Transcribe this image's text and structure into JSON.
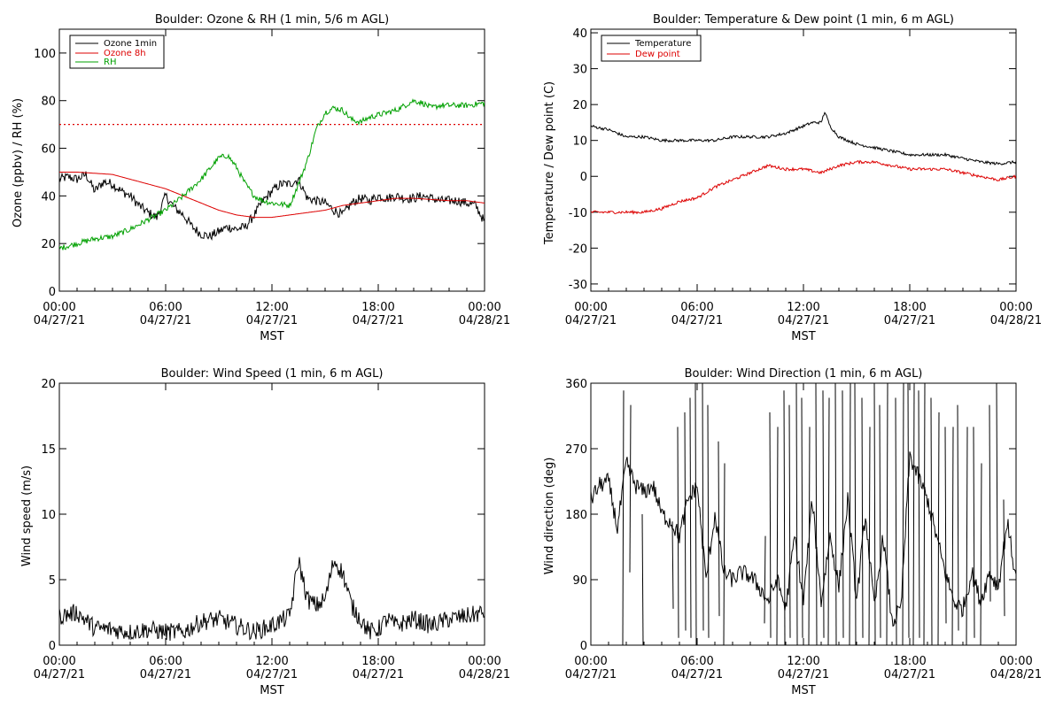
{
  "colors": {
    "black": "#000000",
    "red": "#dd0000",
    "green": "#00a000"
  },
  "x_axis": {
    "label": "MST",
    "range_hours": [
      0,
      24
    ],
    "ticks": [
      {
        "hour": 0,
        "time": "00:00",
        "date": "04/27/21"
      },
      {
        "hour": 6,
        "time": "06:00",
        "date": "04/27/21"
      },
      {
        "hour": 12,
        "time": "12:00",
        "date": "04/27/21"
      },
      {
        "hour": 18,
        "time": "18:00",
        "date": "04/27/21"
      },
      {
        "hour": 24,
        "time": "00:00",
        "date": "04/28/21"
      }
    ]
  },
  "chart_data": [
    {
      "id": "ozone",
      "type": "line",
      "title": "Boulder: Ozone & RH (1 min, 5/6 m AGL)",
      "xlabel": "MST",
      "ylabel": "Ozone (ppbv) / RH (%)",
      "ylim": [
        0,
        110
      ],
      "yticks": [
        0,
        20,
        40,
        60,
        80,
        100
      ],
      "legend_position": "top-left",
      "reference_line": {
        "y": 70,
        "color": "#dd0000",
        "style": "dotted"
      },
      "series": [
        {
          "name": "Ozone 1min",
          "color": "#000000",
          "noise": 2.0,
          "x": [
            0,
            0.5,
            1,
            1.5,
            2,
            2.5,
            3,
            3.5,
            4,
            4.5,
            5,
            5.5,
            6,
            6.5,
            7,
            7.5,
            8,
            8.5,
            9,
            9.5,
            10,
            10.5,
            11,
            11.5,
            12,
            12.5,
            13,
            13.5,
            14,
            14.5,
            15,
            15.5,
            16,
            16.5,
            17,
            17.5,
            18,
            18.5,
            19,
            19.5,
            20,
            20.5,
            21,
            21.5,
            22,
            22.5,
            23,
            23.5,
            24
          ],
          "y": [
            47,
            48,
            47,
            49,
            42,
            46,
            45,
            42,
            40,
            36,
            33,
            31,
            40,
            35,
            32,
            27,
            24,
            23,
            25,
            27,
            26,
            27,
            32,
            38,
            42,
            45,
            45,
            47,
            39,
            38,
            37,
            34,
            32,
            37,
            39,
            38,
            40,
            39,
            40,
            39,
            39,
            40,
            39,
            38,
            38,
            38,
            37,
            36,
            29
          ]
        },
        {
          "name": "Ozone 8h",
          "color": "#dd0000",
          "noise": 0,
          "x": [
            0,
            1,
            2,
            3,
            4,
            5,
            6,
            7,
            8,
            9,
            10,
            11,
            12,
            13,
            14,
            15,
            16,
            17,
            18,
            19,
            20,
            21,
            22,
            23,
            24
          ],
          "y": [
            50,
            50,
            49.5,
            49,
            47,
            45,
            43,
            40,
            37,
            34,
            32,
            31,
            31,
            32,
            33,
            34,
            36,
            37,
            38,
            39,
            39,
            38.5,
            38,
            38,
            37
          ]
        },
        {
          "name": "RH",
          "color": "#00a000",
          "noise": 1.2,
          "x": [
            0,
            1,
            2,
            3,
            4,
            5,
            6,
            7,
            8,
            9,
            9.5,
            10,
            10.5,
            11,
            11.5,
            12,
            13,
            13.5,
            14,
            14.5,
            15,
            15.5,
            16,
            16.5,
            17,
            17.5,
            18,
            19,
            19.5,
            20,
            20.5,
            21,
            21.5,
            22,
            23,
            24
          ],
          "y": [
            18,
            20,
            22,
            23,
            26,
            30,
            34,
            40,
            47,
            56,
            57,
            52,
            45,
            40,
            38,
            37,
            36,
            45,
            55,
            68,
            75,
            77,
            76,
            72,
            71,
            73,
            74,
            76,
            78,
            80,
            79,
            77,
            78,
            78,
            78,
            79
          ]
        }
      ]
    },
    {
      "id": "temp",
      "type": "line",
      "title": "Boulder: Temperature & Dew point (1 min, 6 m AGL)",
      "xlabel": "MST",
      "ylabel": "Temperature / Dew point (C)",
      "ylim": [
        -32,
        41
      ],
      "yticks": [
        -30,
        -20,
        -10,
        0,
        10,
        20,
        30,
        40
      ],
      "legend_position": "top-left",
      "series": [
        {
          "name": "Temperature",
          "color": "#000000",
          "noise": 0.4,
          "x": [
            0,
            1,
            2,
            3,
            4,
            5,
            6,
            7,
            8,
            9,
            10,
            11,
            12,
            12.5,
            13,
            13.2,
            13.5,
            14,
            15,
            16,
            17,
            18,
            19,
            20,
            21,
            22,
            23,
            24
          ],
          "y": [
            14,
            13,
            11,
            11,
            10,
            10,
            10,
            10,
            11,
            11,
            11,
            12,
            14,
            15,
            15,
            18,
            14,
            11,
            9,
            8,
            7,
            6,
            6,
            6,
            5,
            4,
            3.5,
            4
          ]
        },
        {
          "name": "Dew point",
          "color": "#dd0000",
          "noise": 0.4,
          "x": [
            0,
            1,
            2,
            3,
            4,
            5,
            6,
            7,
            8,
            9,
            10,
            11,
            12,
            13,
            14,
            15,
            16,
            17,
            18,
            19,
            20,
            21,
            22,
            23,
            24
          ],
          "y": [
            -10,
            -10,
            -10,
            -10,
            -9,
            -7,
            -6,
            -3,
            -1,
            1,
            3,
            2,
            2,
            1,
            3,
            4,
            4,
            3,
            2,
            2,
            2,
            1,
            0,
            -1,
            0
          ]
        }
      ]
    },
    {
      "id": "wspd",
      "type": "line",
      "title": "Boulder: Wind Speed (1 min, 6 m AGL)",
      "xlabel": "MST",
      "ylabel": "Wind speed (m/s)",
      "ylim": [
        0,
        20
      ],
      "yticks": [
        0,
        5,
        10,
        15,
        20
      ],
      "series": [
        {
          "name": "",
          "color": "#000000",
          "noise": 0.7,
          "x": [
            0,
            1,
            2,
            3,
            4,
            5,
            6,
            7,
            8,
            9,
            10,
            11,
            12,
            13,
            13.5,
            14,
            14.5,
            15,
            15.5,
            16,
            16.5,
            17,
            17.5,
            18,
            18.5,
            19,
            20,
            21,
            22,
            23,
            24
          ],
          "y": [
            2.2,
            2.5,
            1.3,
            1.2,
            1.0,
            1.2,
            1.0,
            1.0,
            1.8,
            2.0,
            1.5,
            1.0,
            1.5,
            2.2,
            6.5,
            3.5,
            3.0,
            3.5,
            6.5,
            5.5,
            3.0,
            2.0,
            1.0,
            1.2,
            2.0,
            1.5,
            2.0,
            1.5,
            2.0,
            2.2,
            2.5
          ]
        }
      ]
    },
    {
      "id": "wdir",
      "type": "line",
      "title": "Boulder: Wind Direction (1 min, 6 m AGL)",
      "xlabel": "MST",
      "ylabel": "Wind direction (deg)",
      "ylim": [
        0,
        360
      ],
      "yticks": [
        0,
        90,
        180,
        270,
        360
      ],
      "series": [
        {
          "name": "",
          "color": "#000000",
          "noise": 12,
          "x": [
            0,
            0.5,
            1,
            1.5,
            2,
            2.5,
            3,
            3.5,
            4,
            4.5,
            5,
            5.5,
            6,
            6.5,
            7,
            7.5,
            8,
            8.5,
            9,
            9.5,
            10,
            10.5,
            11,
            11.5,
            12,
            12.5,
            13,
            13.5,
            14,
            14.5,
            15,
            15.5,
            16,
            16.5,
            17,
            17.5,
            18,
            18.5,
            19,
            19.5,
            20,
            20.5,
            21,
            21.5,
            22,
            22.5,
            23,
            23.5,
            24
          ],
          "y": [
            200,
            220,
            225,
            160,
            250,
            220,
            210,
            220,
            180,
            170,
            150,
            200,
            220,
            90,
            180,
            100,
            90,
            100,
            95,
            80,
            60,
            90,
            50,
            150,
            60,
            200,
            60,
            150,
            80,
            200,
            60,
            180,
            50,
            150,
            30,
            50,
            260,
            230,
            200,
            150,
            100,
            60,
            50,
            100,
            60,
            100,
            80,
            170,
            90
          ],
          "spikes": [
            [
              1.8,
              0,
              350
            ],
            [
              2.2,
              100,
              330
            ],
            [
              2.9,
              180,
              0
            ],
            [
              4.6,
              170,
              50
            ],
            [
              4.9,
              300,
              10
            ],
            [
              5.3,
              320,
              20
            ],
            [
              5.6,
              340,
              10
            ],
            [
              5.9,
              360,
              0
            ],
            [
              6.3,
              360,
              20
            ],
            [
              6.6,
              330,
              10
            ],
            [
              7.2,
              280,
              40
            ],
            [
              7.5,
              0,
              250
            ],
            [
              9.8,
              30,
              150
            ],
            [
              10.1,
              320,
              10
            ],
            [
              10.5,
              0,
              300
            ],
            [
              10.9,
              350,
              0
            ],
            [
              11.2,
              330,
              10
            ],
            [
              11.6,
              360,
              0
            ],
            [
              11.9,
              340,
              10
            ],
            [
              12.3,
              0,
              300
            ],
            [
              12.7,
              360,
              0
            ],
            [
              13.1,
              350,
              10
            ],
            [
              13.4,
              0,
              340
            ],
            [
              13.8,
              360,
              0
            ],
            [
              14.2,
              350,
              10
            ],
            [
              14.6,
              0,
              360
            ],
            [
              14.9,
              360,
              0
            ],
            [
              15.3,
              340,
              10
            ],
            [
              15.7,
              0,
              300
            ],
            [
              16.0,
              360,
              0
            ],
            [
              16.3,
              330,
              10
            ],
            [
              16.7,
              0,
              360
            ],
            [
              17.2,
              340,
              0
            ],
            [
              17.6,
              0,
              360
            ],
            [
              17.9,
              360,
              10
            ],
            [
              18.2,
              0,
              360
            ],
            [
              18.5,
              350,
              10
            ],
            [
              18.8,
              0,
              360
            ],
            [
              19.2,
              340,
              0
            ],
            [
              19.6,
              0,
              320
            ],
            [
              20.0,
              300,
              30
            ],
            [
              20.4,
              0,
              300
            ],
            [
              20.7,
              330,
              20
            ],
            [
              21.2,
              0,
              300
            ],
            [
              21.6,
              300,
              10
            ],
            [
              22.0,
              0,
              250
            ],
            [
              22.5,
              330,
              60
            ],
            [
              22.9,
              360,
              80
            ],
            [
              23.3,
              200,
              40
            ]
          ]
        }
      ]
    }
  ]
}
